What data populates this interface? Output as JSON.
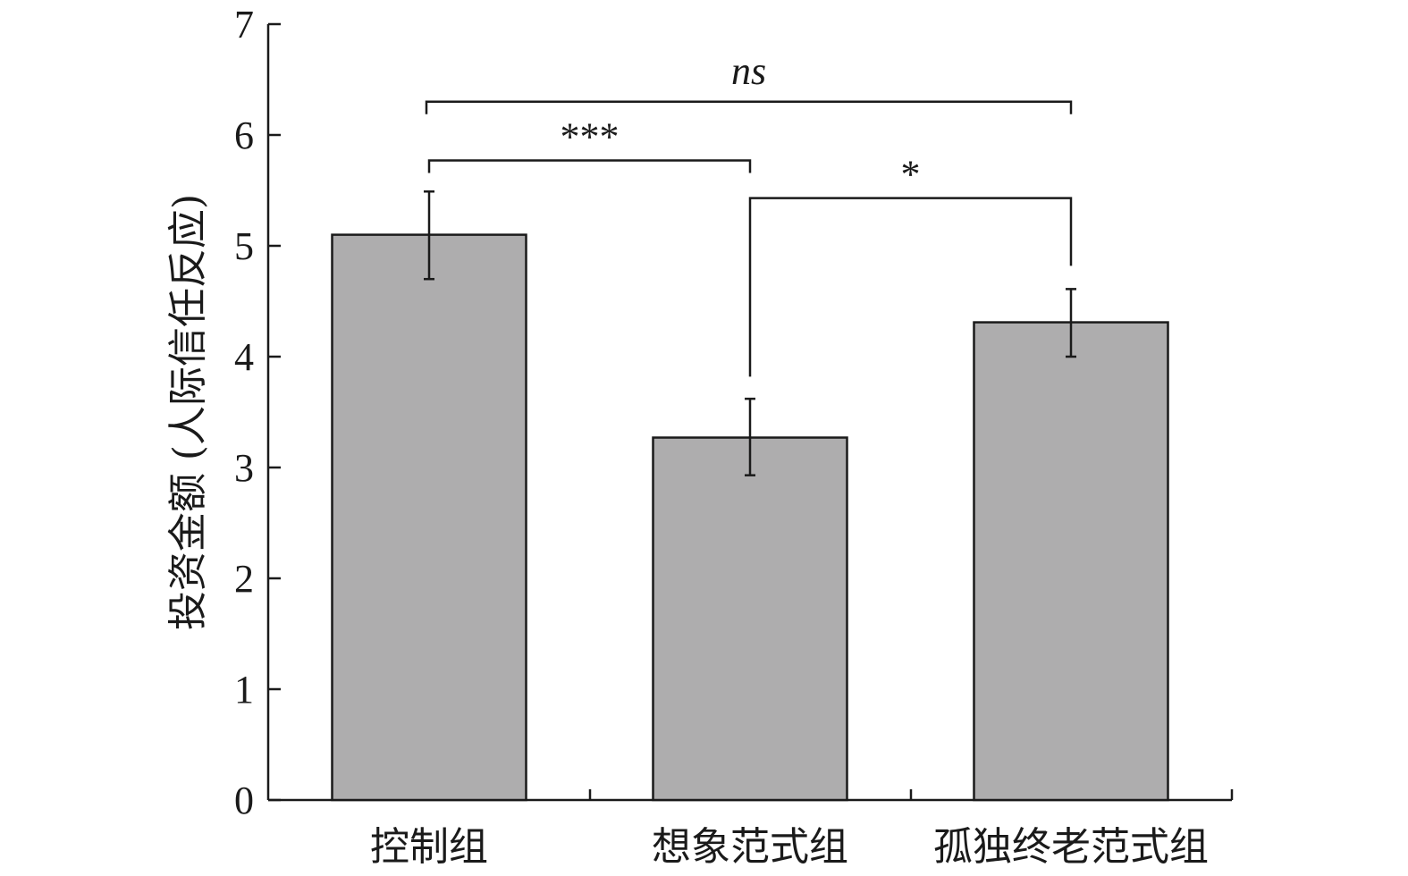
{
  "chart_data": {
    "type": "bar",
    "title": "",
    "xlabel": "",
    "ylabel": "投资金额 (人际信任反应)",
    "ylim": [
      0,
      7
    ],
    "yticks": [
      0,
      1,
      2,
      3,
      4,
      5,
      6,
      7
    ],
    "categories": [
      "控制组",
      "想象范式组",
      "孤独终老范式组"
    ],
    "values": [
      5.1,
      3.27,
      4.31
    ],
    "error_upper": [
      5.49,
      3.62,
      4.61
    ],
    "error_lower": [
      4.7,
      2.93,
      4.0
    ],
    "bar_color": "#aeadae",
    "edge_color": "#1a1a1a",
    "grid": false,
    "significance": [
      {
        "from": 0,
        "to": 2,
        "y": 6.3,
        "label": "ns",
        "italic": true
      },
      {
        "from": 0,
        "to": 1,
        "y": 5.77,
        "label": "***",
        "italic": false
      },
      {
        "from": 1,
        "to": 2,
        "y": 5.43,
        "label": "*",
        "italic": false
      }
    ]
  }
}
